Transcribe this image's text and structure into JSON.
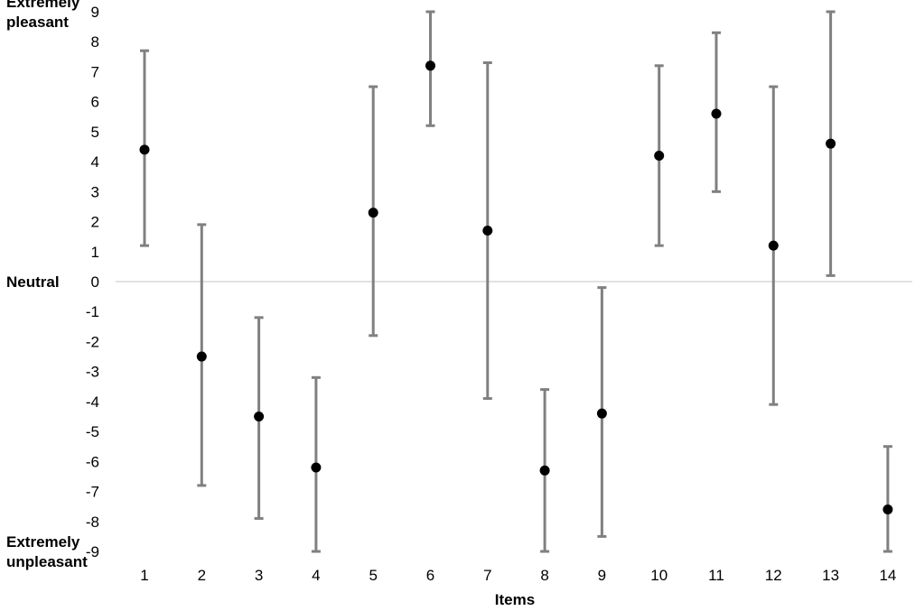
{
  "chart_data": {
    "type": "scatter",
    "title": "",
    "xlabel": "Items",
    "ylabel": "",
    "categories": [
      "1",
      "2",
      "3",
      "4",
      "5",
      "6",
      "7",
      "8",
      "9",
      "10",
      "11",
      "12",
      "13",
      "14"
    ],
    "ylim": [
      -9,
      9
    ],
    "yticks": [
      "9",
      "8",
      "7",
      "6",
      "5",
      "4",
      "3",
      "2",
      "1",
      "0",
      "-1",
      "-2",
      "-3",
      "-4",
      "-5",
      "-6",
      "-7",
      "-8",
      "-9"
    ],
    "ytick_values": [
      9,
      8,
      7,
      6,
      5,
      4,
      3,
      2,
      1,
      0,
      -1,
      -2,
      -3,
      -4,
      -5,
      -6,
      -7,
      -8,
      -9
    ],
    "anchor_labels": [
      {
        "lines": [
          "Extremely",
          "pleasant"
        ],
        "value": 9
      },
      {
        "lines": [
          "Neutral"
        ],
        "value": 0
      },
      {
        "lines": [
          "Extremely",
          "unpleasant"
        ],
        "value": -9
      }
    ],
    "series": [
      {
        "means": [
          4.4,
          -2.5,
          -4.5,
          -6.2,
          2.3,
          7.2,
          1.7,
          -6.3,
          -4.4,
          4.2,
          5.6,
          1.2,
          4.6,
          -7.6
        ],
        "upper": [
          7.7,
          1.9,
          -1.2,
          -3.2,
          6.5,
          9.0,
          7.3,
          -3.6,
          -0.2,
          7.2,
          8.3,
          6.5,
          9.0,
          -5.5
        ],
        "lower": [
          1.2,
          -6.8,
          -7.9,
          -9.0,
          -1.8,
          5.2,
          -3.9,
          -9.0,
          -8.5,
          1.2,
          3.0,
          -4.1,
          0.2,
          -9.0
        ]
      }
    ],
    "grid": false,
    "zero_line": true,
    "colors": {
      "marker": "#000000",
      "error_bar": "#808080",
      "zero_line": "#d9d9d9"
    }
  }
}
